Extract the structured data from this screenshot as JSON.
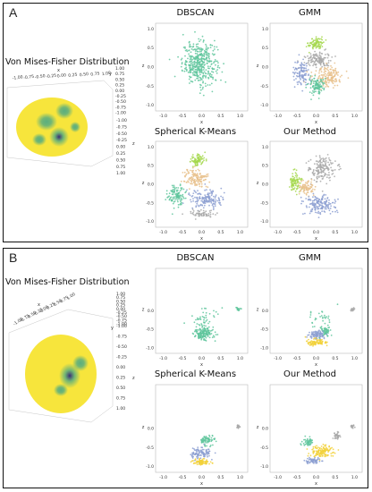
{
  "panels": [
    {
      "letter": "A",
      "vmf_title": "Von Mises-Fisher Distribution",
      "sphere_axis_label_x": "x",
      "sphere_axis_label_y": "y",
      "sphere_axis_label_z": "z",
      "sphere_ticks_top": [
        "-1.00",
        "-0.75",
        "-0.50",
        "-0.25",
        "0.00",
        "0.25",
        "0.50",
        "0.75",
        "1.00"
      ],
      "sphere_ticks_side": [
        "-1.00",
        "-0.75",
        "-0.50",
        "-0.25",
        "0.00",
        "0.25",
        "0.50",
        "0.75",
        "1.00"
      ],
      "sphere_ticks_right": [
        "1.00",
        "0.75",
        "0.50",
        "0.25",
        "0.00",
        "-0.25",
        "-0.50",
        "-0.75",
        "-1.00"
      ]
    },
    {
      "letter": "B",
      "vmf_title": "Von Mises-Fisher Distribution",
      "sphere_axis_label_x": "x",
      "sphere_axis_label_y": "y",
      "sphere_axis_label_z": "z",
      "sphere_ticks_top": [
        "-1.00",
        "-0.75",
        "-0.50",
        "-0.25",
        "0.00",
        "0.25",
        "0.50",
        "0.75",
        "1.00"
      ],
      "sphere_ticks_side": [
        "-1.00",
        "-0.75",
        "-0.50",
        "-0.25",
        "0.00",
        "0.25",
        "0.50",
        "0.75",
        "1.00"
      ],
      "sphere_ticks_right": [
        "1.00",
        "0.75",
        "0.50",
        "0.25",
        "0.00",
        "-0.25",
        "-0.50",
        "-0.75",
        "-1.00"
      ]
    }
  ],
  "colors": {
    "teal": "#5fc59c",
    "lime": "#a6d84f",
    "tan": "#e8c08a",
    "grey": "#a9a9a9",
    "blue": "#8c9fd1",
    "yellow": "#f2d13a",
    "vmf_low": "#f7e53c",
    "vmf_mid": "#5aae7f",
    "vmf_high": "#3a2a75"
  },
  "chart_data": [
    {
      "type": "scatter",
      "panel": "A",
      "title": "DBSCAN",
      "xlabel": "x",
      "ylabel": "z",
      "xlim": [
        -1.2,
        1.2
      ],
      "ylim": [
        -1.15,
        1.15
      ],
      "xticks": [
        "-1.0",
        "-0.5",
        "0.0",
        "0.5",
        "1.0"
      ],
      "yticks": [
        "1.0",
        "0.5",
        "0.0",
        "-0.5",
        "-1.0"
      ],
      "clusters": [
        {
          "color_key": "teal",
          "center": [
            -0.05,
            0.1
          ],
          "spread": [
            0.45,
            0.55
          ],
          "count": 420
        }
      ]
    },
    {
      "type": "scatter",
      "panel": "A",
      "title": "GMM",
      "xlabel": "x",
      "ylabel": "z",
      "xlim": [
        -1.2,
        1.2
      ],
      "ylim": [
        -1.15,
        1.15
      ],
      "xticks": [
        "-1.0",
        "-0.5",
        "0.0",
        "0.5",
        "1.0"
      ],
      "yticks": [
        "1.0",
        "0.5",
        "0.0",
        "-0.5",
        "-1.0"
      ],
      "clusters": [
        {
          "color_key": "lime",
          "center": [
            0.0,
            0.62
          ],
          "spread": [
            0.2,
            0.16
          ],
          "count": 90
        },
        {
          "color_key": "grey",
          "center": [
            0.05,
            0.2
          ],
          "spread": [
            0.32,
            0.2
          ],
          "count": 140
        },
        {
          "color_key": "tan",
          "center": [
            0.3,
            -0.25
          ],
          "spread": [
            0.4,
            0.28
          ],
          "count": 150
        },
        {
          "color_key": "blue",
          "center": [
            -0.4,
            -0.15
          ],
          "spread": [
            0.2,
            0.3
          ],
          "count": 110
        },
        {
          "color_key": "teal",
          "center": [
            0.0,
            -0.5
          ],
          "spread": [
            0.22,
            0.22
          ],
          "count": 110
        }
      ]
    },
    {
      "type": "scatter",
      "panel": "A",
      "title": "Spherical K-Means",
      "xlabel": "x",
      "ylabel": "z",
      "xlim": [
        -1.2,
        1.2
      ],
      "ylim": [
        -1.15,
        1.15
      ],
      "xticks": [
        "-1.0",
        "-0.5",
        "0.0",
        "0.5",
        "1.0"
      ],
      "yticks": [
        "1.0",
        "0.5",
        "0.0",
        "-0.5",
        "-1.0"
      ],
      "clusters": [
        {
          "color_key": "lime",
          "center": [
            -0.1,
            0.65
          ],
          "spread": [
            0.2,
            0.16
          ],
          "count": 90
        },
        {
          "color_key": "tan",
          "center": [
            -0.15,
            0.15
          ],
          "spread": [
            0.32,
            0.25
          ],
          "count": 130
        },
        {
          "color_key": "teal",
          "center": [
            -0.65,
            -0.3
          ],
          "spread": [
            0.22,
            0.3
          ],
          "count": 110
        },
        {
          "color_key": "blue",
          "center": [
            0.1,
            -0.4
          ],
          "spread": [
            0.45,
            0.25
          ],
          "count": 160
        },
        {
          "color_key": "grey",
          "center": [
            0.0,
            -0.8
          ],
          "spread": [
            0.35,
            0.1
          ],
          "count": 60
        }
      ]
    },
    {
      "type": "scatter",
      "panel": "A",
      "title": "Our Method",
      "xlabel": "x",
      "ylabel": "z",
      "xlim": [
        -1.2,
        1.2
      ],
      "ylim": [
        -1.15,
        1.15
      ],
      "xticks": [
        "-1.0",
        "-0.5",
        "0.0",
        "0.5",
        "1.0"
      ],
      "yticks": [
        "1.0",
        "0.5",
        "0.0",
        "-0.5",
        "-1.0"
      ],
      "clusters": [
        {
          "color_key": "grey",
          "center": [
            0.15,
            0.4
          ],
          "spread": [
            0.35,
            0.35
          ],
          "count": 170
        },
        {
          "color_key": "lime",
          "center": [
            -0.55,
            0.05
          ],
          "spread": [
            0.15,
            0.28
          ],
          "count": 90
        },
        {
          "color_key": "tan",
          "center": [
            -0.25,
            -0.1
          ],
          "spread": [
            0.2,
            0.2
          ],
          "count": 80
        },
        {
          "color_key": "blue",
          "center": [
            0.1,
            -0.55
          ],
          "spread": [
            0.4,
            0.25
          ],
          "count": 160
        }
      ]
    },
    {
      "type": "scatter",
      "panel": "B",
      "title": "DBSCAN",
      "xlabel": "x",
      "ylabel": "z",
      "xlim": [
        -1.2,
        1.2
      ],
      "ylim": [
        -1.15,
        1.15
      ],
      "xticks": [
        "-1.0",
        "-0.5",
        "0.0",
        "0.5",
        "1.0"
      ],
      "yticks": [
        "0.0",
        "-0.5",
        "-1.0"
      ],
      "clusters": [
        {
          "color_key": "teal",
          "center": [
            0.05,
            -0.6
          ],
          "spread": [
            0.25,
            0.2
          ],
          "count": 170
        },
        {
          "color_key": "teal",
          "center": [
            0.95,
            0.05
          ],
          "spread": [
            0.06,
            0.05
          ],
          "count": 18
        },
        {
          "color_key": "teal",
          "center": [
            0.05,
            -0.2
          ],
          "spread": [
            0.35,
            0.3
          ],
          "count": 40
        }
      ]
    },
    {
      "type": "scatter",
      "panel": "B",
      "title": "GMM",
      "xlabel": "x",
      "ylabel": "z",
      "xlim": [
        -1.2,
        1.2
      ],
      "ylim": [
        -1.15,
        1.15
      ],
      "xticks": [
        "-1.0",
        "-0.5",
        "0.0",
        "0.5",
        "1.0"
      ],
      "yticks": [
        "0.0",
        "-0.5",
        "-1.0"
      ],
      "clusters": [
        {
          "color_key": "teal",
          "center": [
            0.25,
            -0.55
          ],
          "spread": [
            0.12,
            0.12
          ],
          "count": 50
        },
        {
          "color_key": "blue",
          "center": [
            0.0,
            -0.65
          ],
          "spread": [
            0.22,
            0.12
          ],
          "count": 90
        },
        {
          "color_key": "yellow",
          "center": [
            0.0,
            -0.85
          ],
          "spread": [
            0.25,
            0.08
          ],
          "count": 90
        },
        {
          "color_key": "grey",
          "center": [
            0.95,
            0.05
          ],
          "spread": [
            0.06,
            0.05
          ],
          "count": 18
        },
        {
          "color_key": "teal",
          "center": [
            0.1,
            -0.2
          ],
          "spread": [
            0.35,
            0.3
          ],
          "count": 35
        }
      ]
    },
    {
      "type": "scatter",
      "panel": "B",
      "title": "Spherical K-Means",
      "xlabel": "x",
      "ylabel": "z",
      "xlim": [
        -1.2,
        1.2
      ],
      "ylim": [
        -1.15,
        1.15
      ],
      "xticks": [
        "-1.0",
        "-0.5",
        "0.0",
        "0.5",
        "1.0"
      ],
      "yticks": [
        "0.0",
        "-0.5",
        "-1.0"
      ],
      "clusters": [
        {
          "color_key": "teal",
          "center": [
            0.15,
            -0.3
          ],
          "spread": [
            0.2,
            0.15
          ],
          "count": 70
        },
        {
          "color_key": "blue",
          "center": [
            -0.05,
            -0.65
          ],
          "spread": [
            0.25,
            0.12
          ],
          "count": 100
        },
        {
          "color_key": "yellow",
          "center": [
            0.0,
            -0.88
          ],
          "spread": [
            0.22,
            0.08
          ],
          "count": 90
        },
        {
          "color_key": "grey",
          "center": [
            0.95,
            0.05
          ],
          "spread": [
            0.06,
            0.05
          ],
          "count": 18
        }
      ]
    },
    {
      "type": "scatter",
      "panel": "B",
      "title": "Our Method",
      "xlabel": "x",
      "ylabel": "z",
      "xlim": [
        -1.2,
        1.2
      ],
      "ylim": [
        -1.15,
        1.15
      ],
      "xticks": [
        "-1.0",
        "-0.5",
        "0.0",
        "0.5",
        "1.0"
      ],
      "yticks": [
        "0.0",
        "-0.5",
        "-1.0"
      ],
      "clusters": [
        {
          "color_key": "grey",
          "center": [
            0.55,
            -0.2
          ],
          "spread": [
            0.08,
            0.1
          ],
          "count": 35
        },
        {
          "color_key": "teal",
          "center": [
            -0.2,
            -0.35
          ],
          "spread": [
            0.15,
            0.12
          ],
          "count": 50
        },
        {
          "color_key": "yellow",
          "center": [
            0.15,
            -0.6
          ],
          "spread": [
            0.3,
            0.15
          ],
          "count": 130
        },
        {
          "color_key": "blue",
          "center": [
            -0.1,
            -0.85
          ],
          "spread": [
            0.2,
            0.08
          ],
          "count": 60
        },
        {
          "color_key": "grey",
          "center": [
            0.95,
            0.05
          ],
          "spread": [
            0.06,
            0.05
          ],
          "count": 18
        }
      ]
    }
  ]
}
